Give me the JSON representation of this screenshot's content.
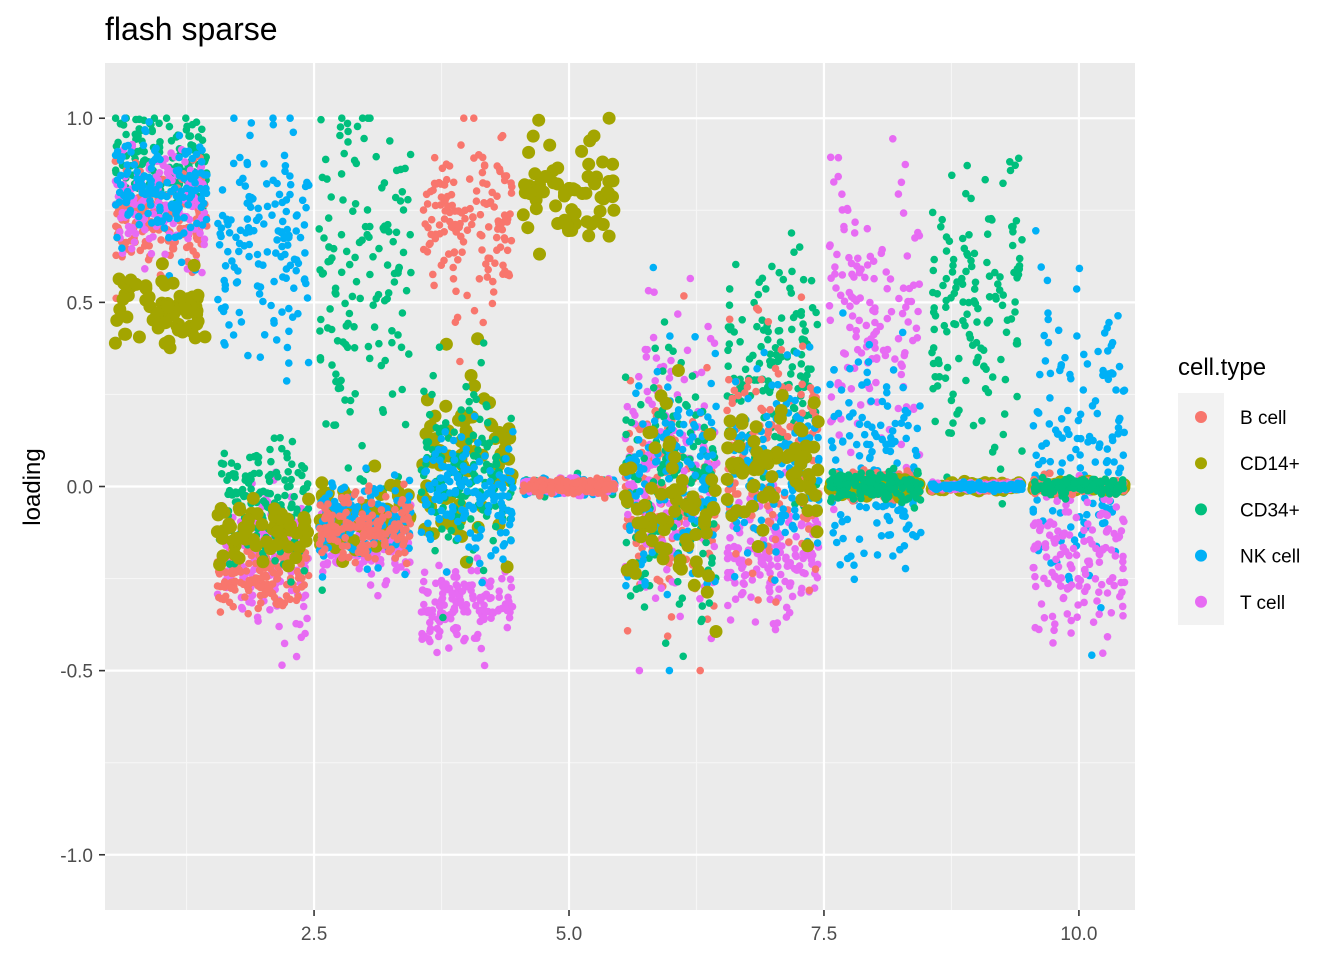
{
  "chart_data": {
    "type": "scatter",
    "title": "flash sparse",
    "xlabel": "",
    "ylabel": "loading",
    "xlim": [
      0.45,
      10.55
    ],
    "ylim": [
      -1.15,
      1.15
    ],
    "x_ticks": [
      2.5,
      5.0,
      7.5,
      10.0
    ],
    "x_tick_labels": [
      "2.5",
      "5.0",
      "7.5",
      "10.0"
    ],
    "y_ticks": [
      1.0,
      0.5,
      0.0,
      -0.5,
      -1.0
    ],
    "y_tick_labels": [
      "1.0",
      "0.5",
      "0.0",
      "-0.5",
      "-1.0"
    ],
    "grid": true,
    "legend": {
      "title": "cell.type",
      "position": "right",
      "entries": [
        {
          "name": "B cell",
          "color": "#F8766D"
        },
        {
          "name": "CD14+",
          "color": "#A3A500"
        },
        {
          "name": "CD34+",
          "color": "#00BF7D"
        },
        {
          "name": "NK cell",
          "color": "#00B0F6"
        },
        {
          "name": "T cell",
          "color": "#E76BF3"
        }
      ]
    },
    "note_on_points": "Points are jittered around integer x positions 1-10 (factor index); per factor and cell type the approximate central loading and spread are given.",
    "factors": [
      {
        "x": 1,
        "groups": [
          {
            "type": "CD34+",
            "center": 0.88,
            "spread": 0.07
          },
          {
            "type": "B cell",
            "center": 0.72,
            "spread": 0.06
          },
          {
            "type": "T cell",
            "center": 0.76,
            "spread": 0.07
          },
          {
            "type": "NK cell",
            "center": 0.8,
            "spread": 0.08
          },
          {
            "type": "CD14+",
            "center": 0.48,
            "spread": 0.05
          }
        ]
      },
      {
        "x": 2,
        "groups": [
          {
            "type": "NK cell",
            "center": 0.65,
            "spread": 0.15
          },
          {
            "type": "T cell",
            "center": -0.2,
            "spread": 0.1
          },
          {
            "type": "B cell",
            "center": -0.25,
            "spread": 0.05
          },
          {
            "type": "CD34+",
            "center": -0.05,
            "spread": 0.08
          },
          {
            "type": "CD14+",
            "center": -0.12,
            "spread": 0.04
          }
        ]
      },
      {
        "x": 3,
        "groups": [
          {
            "type": "CD34+",
            "center": 0.55,
            "spread": 0.25
          },
          {
            "type": "T cell",
            "center": -0.15,
            "spread": 0.05
          },
          {
            "type": "CD14+",
            "center": -0.08,
            "spread": 0.05
          },
          {
            "type": "NK cell",
            "center": -0.1,
            "spread": 0.06
          },
          {
            "type": "B cell",
            "center": -0.12,
            "spread": 0.05
          }
        ]
      },
      {
        "x": 4,
        "groups": [
          {
            "type": "B cell",
            "center": 0.7,
            "spread": 0.12
          },
          {
            "type": "T cell",
            "center": -0.32,
            "spread": 0.05
          },
          {
            "type": "CD14+",
            "center": 0.1,
            "spread": 0.12
          },
          {
            "type": "CD34+",
            "center": 0.05,
            "spread": 0.12
          },
          {
            "type": "NK cell",
            "center": -0.02,
            "spread": 0.08
          }
        ]
      },
      {
        "x": 5,
        "groups": [
          {
            "type": "CD14+",
            "center": 0.8,
            "spread": 0.08
          },
          {
            "type": "CD34+",
            "center": 0.0,
            "spread": 0.01
          },
          {
            "type": "NK cell",
            "center": 0.0,
            "spread": 0.01
          },
          {
            "type": "T cell",
            "center": 0.0,
            "spread": 0.01
          },
          {
            "type": "B cell",
            "center": 0.0,
            "spread": 0.01
          }
        ]
      },
      {
        "x": 6,
        "groups": [
          {
            "type": "B cell",
            "center": -0.05,
            "spread": 0.15
          },
          {
            "type": "T cell",
            "center": 0.05,
            "spread": 0.2
          },
          {
            "type": "CD34+",
            "center": 0.0,
            "spread": 0.18
          },
          {
            "type": "NK cell",
            "center": 0.0,
            "spread": 0.18
          },
          {
            "type": "CD14+",
            "center": -0.05,
            "spread": 0.15
          }
        ]
      },
      {
        "x": 7,
        "groups": [
          {
            "type": "T cell",
            "center": -0.2,
            "spread": 0.08
          },
          {
            "type": "CD34+",
            "center": 0.3,
            "spread": 0.15
          },
          {
            "type": "B cell",
            "center": 0.1,
            "spread": 0.15
          },
          {
            "type": "NK cell",
            "center": 0.05,
            "spread": 0.12
          },
          {
            "type": "CD14+",
            "center": 0.05,
            "spread": 0.1
          }
        ]
      },
      {
        "x": 8,
        "groups": [
          {
            "type": "T cell",
            "center": 0.45,
            "spread": 0.2
          },
          {
            "type": "NK cell",
            "center": 0.05,
            "spread": 0.15
          },
          {
            "type": "B cell",
            "center": 0.0,
            "spread": 0.02
          },
          {
            "type": "CD14+",
            "center": 0.0,
            "spread": 0.01
          },
          {
            "type": "CD34+",
            "center": 0.0,
            "spread": 0.02
          }
        ]
      },
      {
        "x": 9,
        "groups": [
          {
            "type": "CD34+",
            "center": 0.45,
            "spread": 0.2
          },
          {
            "type": "CD14+",
            "center": 0.0,
            "spread": 0.005
          },
          {
            "type": "B cell",
            "center": 0.0,
            "spread": 0.005
          },
          {
            "type": "T cell",
            "center": 0.0,
            "spread": 0.005
          },
          {
            "type": "NK cell",
            "center": 0.0,
            "spread": 0.005
          }
        ]
      },
      {
        "x": 10,
        "groups": [
          {
            "type": "NK cell",
            "center": 0.1,
            "spread": 0.2
          },
          {
            "type": "T cell",
            "center": -0.2,
            "spread": 0.1
          },
          {
            "type": "CD14+",
            "center": 0.0,
            "spread": 0.005
          },
          {
            "type": "B cell",
            "center": 0.0,
            "spread": 0.01
          },
          {
            "type": "CD34+",
            "center": 0.0,
            "spread": 0.01
          }
        ]
      }
    ]
  }
}
